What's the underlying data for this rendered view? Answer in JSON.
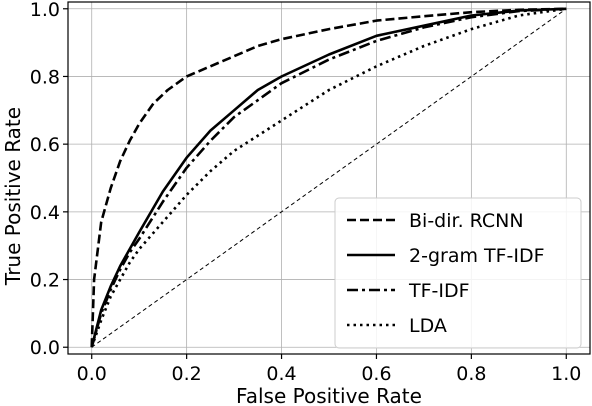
{
  "chart_data": {
    "type": "line",
    "title": "",
    "xlabel": "False Positive Rate",
    "ylabel": "True Positive Rate",
    "xlim": [
      -0.05,
      1.05
    ],
    "ylim": [
      -0.02,
      1.02
    ],
    "xticks": [
      0.0,
      0.2,
      0.4,
      0.6,
      0.8,
      1.0
    ],
    "yticks": [
      0.0,
      0.2,
      0.4,
      0.6,
      0.8,
      1.0
    ],
    "xtick_labels": [
      "0.0",
      "0.2",
      "0.4",
      "0.6",
      "0.8",
      "1.0"
    ],
    "ytick_labels": [
      "0.0",
      "0.2",
      "0.4",
      "0.6",
      "0.8",
      "1.0"
    ],
    "grid": true,
    "legend_position": "bottom-right",
    "series": [
      {
        "name": "Bi-dir. RCNN",
        "style": "dashed",
        "x": [
          0,
          0.005,
          0.02,
          0.04,
          0.06,
          0.08,
          0.1,
          0.13,
          0.16,
          0.2,
          0.25,
          0.3,
          0.35,
          0.4,
          0.5,
          0.6,
          0.7,
          0.8,
          0.9,
          1.0
        ],
        "y": [
          0,
          0.2,
          0.37,
          0.47,
          0.55,
          0.61,
          0.66,
          0.72,
          0.76,
          0.8,
          0.83,
          0.86,
          0.89,
          0.91,
          0.94,
          0.965,
          0.978,
          0.99,
          0.997,
          1.0
        ]
      },
      {
        "name": "2-gram TF-IDF",
        "style": "solid",
        "x": [
          0,
          0.02,
          0.04,
          0.06,
          0.08,
          0.1,
          0.15,
          0.2,
          0.25,
          0.3,
          0.35,
          0.4,
          0.5,
          0.6,
          0.7,
          0.8,
          0.9,
          1.0
        ],
        "y": [
          0,
          0.11,
          0.18,
          0.24,
          0.29,
          0.34,
          0.46,
          0.56,
          0.64,
          0.7,
          0.76,
          0.8,
          0.865,
          0.92,
          0.95,
          0.98,
          0.995,
          1.0
        ]
      },
      {
        "name": "TF-IDF",
        "style": "dashdot",
        "x": [
          0,
          0.02,
          0.04,
          0.06,
          0.08,
          0.1,
          0.15,
          0.2,
          0.25,
          0.3,
          0.35,
          0.4,
          0.5,
          0.6,
          0.7,
          0.8,
          0.9,
          1.0
        ],
        "y": [
          0,
          0.1,
          0.17,
          0.23,
          0.28,
          0.32,
          0.43,
          0.53,
          0.61,
          0.68,
          0.73,
          0.78,
          0.85,
          0.905,
          0.945,
          0.975,
          0.993,
          1.0
        ]
      },
      {
        "name": "LDA",
        "style": "dotted",
        "x": [
          0,
          0.02,
          0.04,
          0.06,
          0.08,
          0.1,
          0.15,
          0.2,
          0.25,
          0.3,
          0.4,
          0.5,
          0.6,
          0.7,
          0.8,
          0.9,
          1.0
        ],
        "y": [
          0,
          0.08,
          0.15,
          0.2,
          0.25,
          0.29,
          0.37,
          0.45,
          0.52,
          0.58,
          0.67,
          0.76,
          0.83,
          0.89,
          0.94,
          0.98,
          1.0
        ]
      },
      {
        "name": "",
        "style": "chance",
        "x": [
          0,
          1
        ],
        "y": [
          0,
          1
        ]
      }
    ]
  }
}
